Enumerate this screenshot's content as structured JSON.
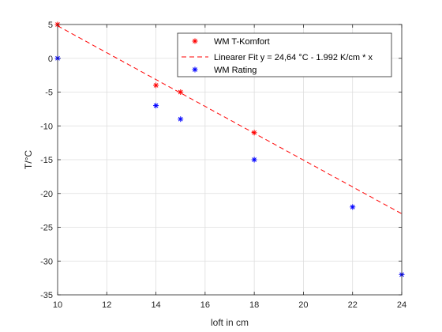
{
  "chart_data": {
    "type": "scatter",
    "xlabel": "loft in cm",
    "ylabel": "T/°C",
    "xlim": [
      10,
      24
    ],
    "ylim": [
      -35,
      5
    ],
    "xticks": [
      10,
      12,
      14,
      16,
      18,
      20,
      22,
      24
    ],
    "yticks": [
      5,
      0,
      -5,
      -10,
      -15,
      -20,
      -25,
      -30,
      -35
    ],
    "grid": true,
    "legend_position": "top-right",
    "series": [
      {
        "name": "WM T-Komfort",
        "kind": "marker",
        "marker": "asterisk",
        "color": "#ff0000",
        "x": [
          10,
          14,
          15,
          18
        ],
        "y": [
          5,
          -4,
          -5,
          -11
        ]
      },
      {
        "name": "Linearer Fit y = 24,64 °C - 1.992 K/cm * x",
        "kind": "line",
        "style": "dashed",
        "color": "#ff0000",
        "x": [
          10,
          24
        ],
        "y": [
          4.8,
          -23.0
        ]
      },
      {
        "name": "WM Rating",
        "kind": "marker",
        "marker": "asterisk",
        "color": "#0000ff",
        "x": [
          10,
          14,
          15,
          18,
          22,
          24
        ],
        "y": [
          0,
          -7,
          -9,
          -15,
          -22,
          -32
        ]
      }
    ]
  }
}
